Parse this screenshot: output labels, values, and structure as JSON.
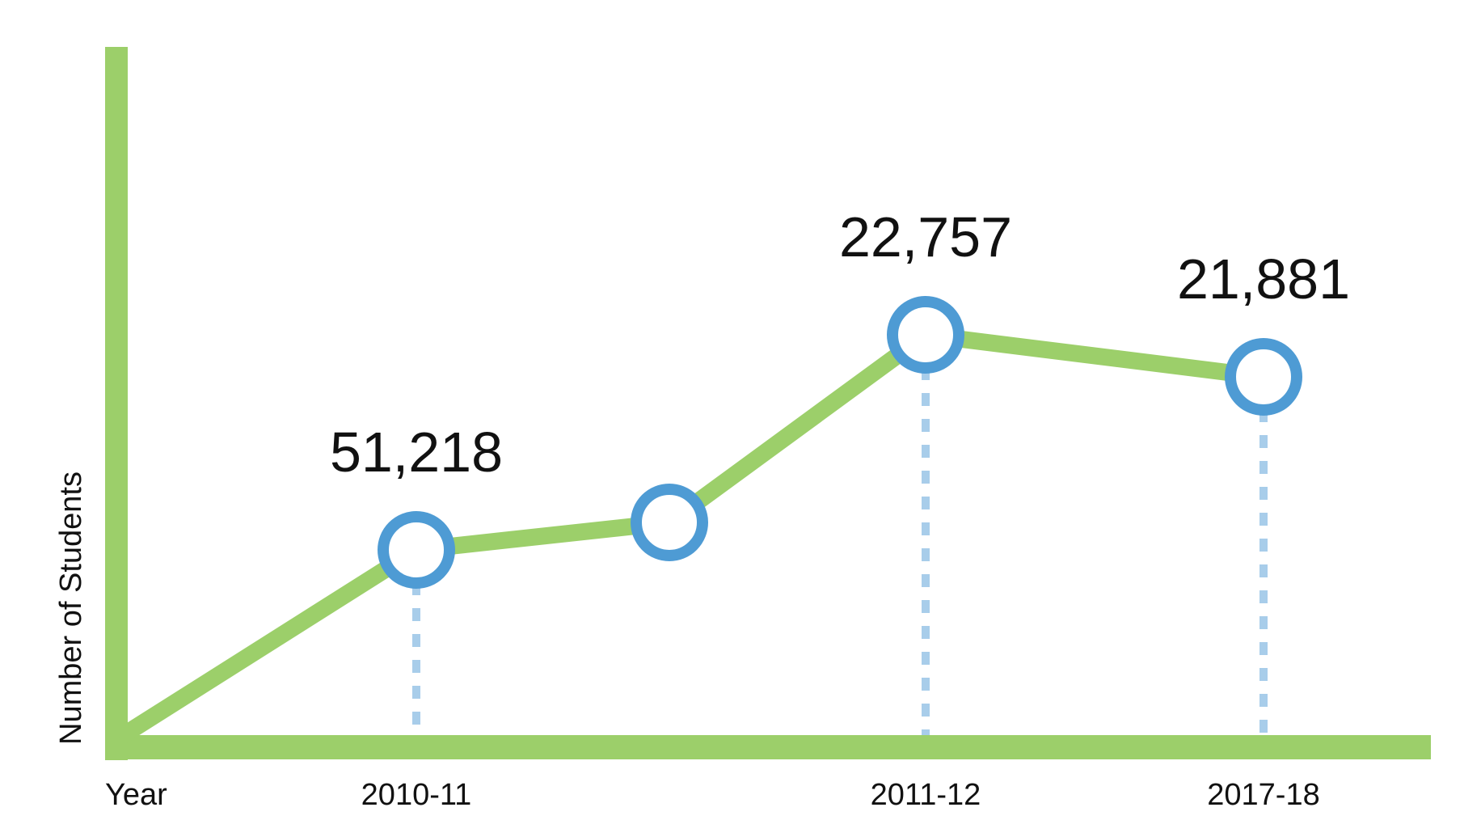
{
  "chart_data": {
    "type": "line",
    "xlabel": "Year",
    "ylabel": "Number of Students",
    "grid": false,
    "ticks": [
      {
        "index": 1,
        "label": "2010-11"
      },
      {
        "index": 3,
        "label": "2011-12"
      },
      {
        "index": 4,
        "label": "2017-18"
      }
    ],
    "points": [
      {
        "value": 0,
        "marker": false,
        "label": "",
        "dropline": false
      },
      {
        "value": 51218,
        "marker": true,
        "label": "51,218",
        "dropline": true
      },
      {
        "value": null,
        "marker": true,
        "label": "",
        "dropline": false
      },
      {
        "value": 22757,
        "marker": true,
        "label": "22,757",
        "dropline": true
      },
      {
        "value": 21881,
        "marker": true,
        "label": "21,881",
        "dropline": true
      }
    ],
    "colors": {
      "axis": "#9ccf6a",
      "line": "#9ccf6a",
      "marker_stroke": "#4e9bd4",
      "marker_fill": "#ffffff",
      "dropline": "#a8cdea"
    }
  }
}
